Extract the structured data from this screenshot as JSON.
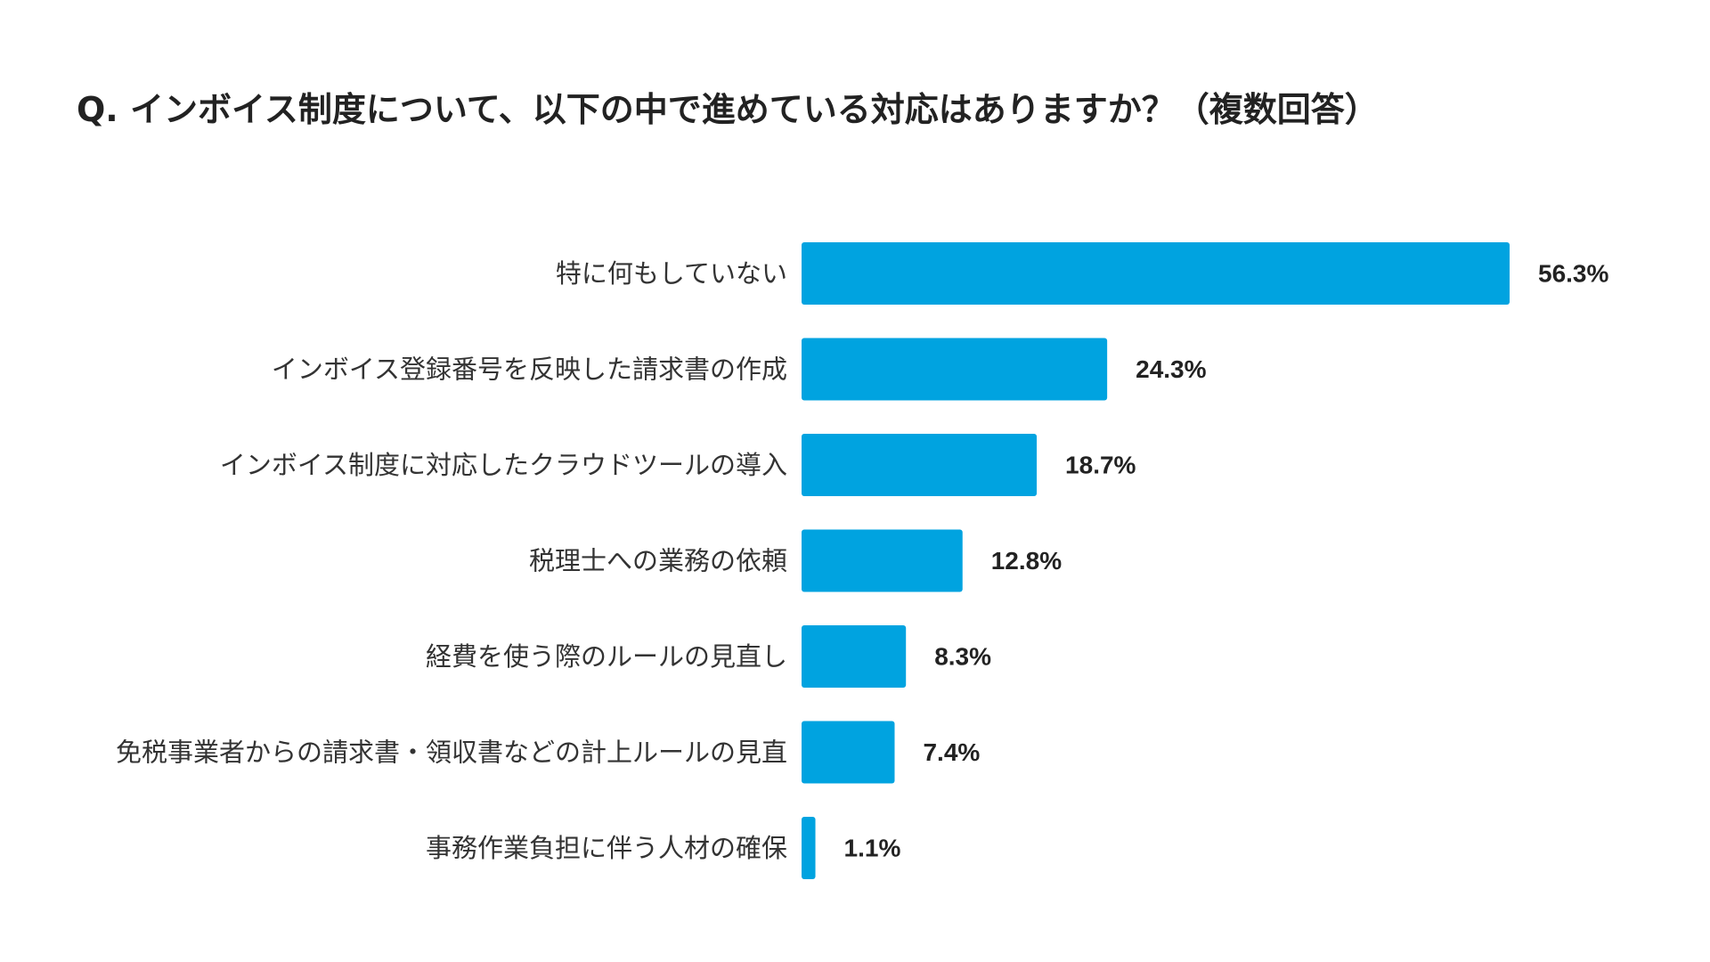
{
  "chart_data": {
    "type": "bar",
    "orientation": "horizontal",
    "title": "Q. インボイス制度について、以下の中で進めている対応はありますか？（複数回答）",
    "categories": [
      "特に何もしていない",
      "インボイス登録番号を反映した請求書の作成",
      "インボイス制度に対応したクラウドツールの導入",
      "税理士への業務の依頼",
      "経費を使う際のルールの見直し",
      "免税事業者からの請求書・領収書などの計上ルールの見直",
      "事務作業負担に伴う人材の確保"
    ],
    "values": [
      56.3,
      24.3,
      18.7,
      12.8,
      8.3,
      7.4,
      1.1
    ],
    "value_labels": [
      "56.3%",
      "24.3%",
      "18.7%",
      "12.8%",
      "8.3%",
      "7.4%",
      "1.1%"
    ],
    "unit": "%",
    "bar_color": "#00A3E0",
    "grid": false,
    "legend": "none",
    "xlim": [
      0,
      56.3
    ]
  }
}
